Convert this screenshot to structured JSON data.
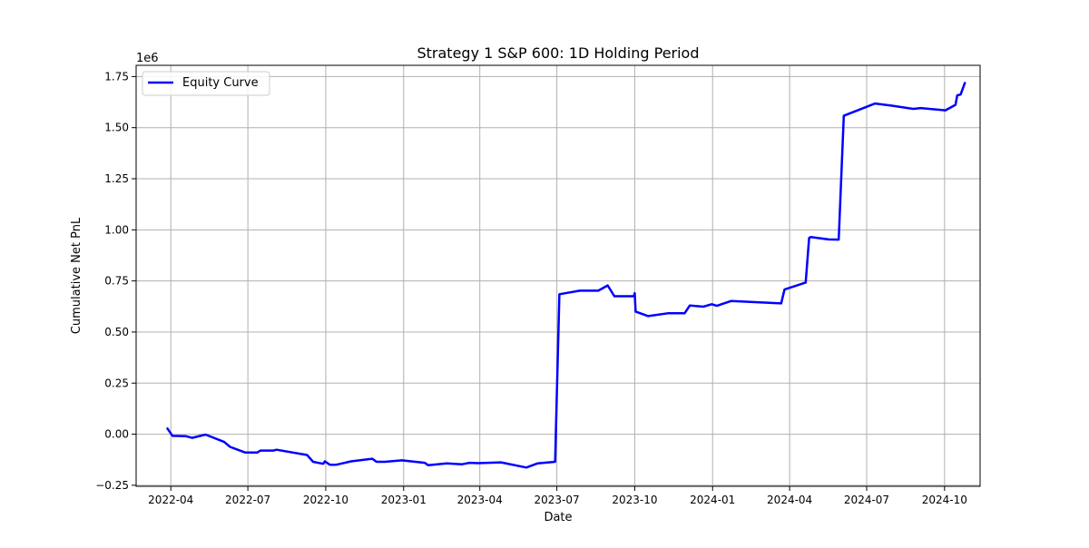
{
  "chart_data": {
    "type": "line",
    "title": "Strategy 1 S&P 600: 1D Holding Period",
    "xlabel": "Date",
    "ylabel": "Cumulative Net PnL",
    "y_multiplier_label": "1e6",
    "y_unit_multiplier": 1000000,
    "xlim": [
      "2022-02-19",
      "2024-11-12"
    ],
    "ylim": [
      -0.255,
      1.805
    ],
    "x_ticks": [
      "2022-04",
      "2022-07",
      "2022-10",
      "2023-01",
      "2023-04",
      "2023-07",
      "2023-10",
      "2024-01",
      "2024-04",
      "2024-07",
      "2024-10"
    ],
    "y_ticks": [
      -0.25,
      0.0,
      0.25,
      0.5,
      0.75,
      1.0,
      1.25,
      1.5,
      1.75
    ],
    "y_tick_labels": [
      "−0.25",
      "0.00",
      "0.25",
      "0.50",
      "0.75",
      "1.00",
      "1.25",
      "1.50",
      "1.75"
    ],
    "grid": true,
    "legend_position": "top-left",
    "line_color": "#0000ff",
    "series": [
      {
        "name": "Equity Curve",
        "points": [
          [
            "2022-03-28",
            0.028
          ],
          [
            "2022-04-03",
            -0.008
          ],
          [
            "2022-04-19",
            -0.01
          ],
          [
            "2022-04-26",
            -0.018
          ],
          [
            "2022-05-12",
            -0.002
          ],
          [
            "2022-06-03",
            -0.038
          ],
          [
            "2022-06-10",
            -0.062
          ],
          [
            "2022-06-28",
            -0.09
          ],
          [
            "2022-07-12",
            -0.09
          ],
          [
            "2022-07-16",
            -0.08
          ],
          [
            "2022-07-31",
            -0.08
          ],
          [
            "2022-08-04",
            -0.076
          ],
          [
            "2022-09-09",
            -0.102
          ],
          [
            "2022-09-16",
            -0.135
          ],
          [
            "2022-09-28",
            -0.145
          ],
          [
            "2022-09-30",
            -0.133
          ],
          [
            "2022-10-06",
            -0.15
          ],
          [
            "2022-10-13",
            -0.15
          ],
          [
            "2022-10-31",
            -0.133
          ],
          [
            "2022-11-25",
            -0.12
          ],
          [
            "2022-11-30",
            -0.135
          ],
          [
            "2022-12-10",
            -0.135
          ],
          [
            "2022-12-30",
            -0.128
          ],
          [
            "2023-01-26",
            -0.14
          ],
          [
            "2023-01-30",
            -0.152
          ],
          [
            "2023-02-21",
            -0.143
          ],
          [
            "2023-03-11",
            -0.147
          ],
          [
            "2023-03-20",
            -0.14
          ],
          [
            "2023-03-30",
            -0.142
          ],
          [
            "2023-04-26",
            -0.138
          ],
          [
            "2023-05-26",
            -0.163
          ],
          [
            "2023-06-08",
            -0.143
          ],
          [
            "2023-06-29",
            -0.135
          ],
          [
            "2023-07-04",
            0.685
          ],
          [
            "2023-07-28",
            0.702
          ],
          [
            "2023-08-19",
            0.702
          ],
          [
            "2023-08-30",
            0.728
          ],
          [
            "2023-09-07",
            0.675
          ],
          [
            "2023-09-30",
            0.675
          ],
          [
            "2023-10-01",
            0.69
          ],
          [
            "2023-10-02",
            0.6
          ],
          [
            "2023-10-17",
            0.578
          ],
          [
            "2023-11-10",
            0.592
          ],
          [
            "2023-11-29",
            0.592
          ],
          [
            "2023-12-05",
            0.63
          ],
          [
            "2023-12-21",
            0.624
          ],
          [
            "2023-12-31",
            0.636
          ],
          [
            "2024-01-06",
            0.628
          ],
          [
            "2024-01-23",
            0.652
          ],
          [
            "2024-03-22",
            0.64
          ],
          [
            "2024-03-26",
            0.708
          ],
          [
            "2024-04-20",
            0.742
          ],
          [
            "2024-04-24",
            0.96
          ],
          [
            "2024-04-26",
            0.965
          ],
          [
            "2024-05-17",
            0.953
          ],
          [
            "2024-05-29",
            0.952
          ],
          [
            "2024-06-04",
            1.558
          ],
          [
            "2024-07-11",
            1.618
          ],
          [
            "2024-07-30",
            1.608
          ],
          [
            "2024-08-25",
            1.592
          ],
          [
            "2024-09-03",
            1.596
          ],
          [
            "2024-10-02",
            1.585
          ],
          [
            "2024-10-14",
            1.612
          ],
          [
            "2024-10-16",
            1.658
          ],
          [
            "2024-10-20",
            1.662
          ],
          [
            "2024-10-25",
            1.719
          ]
        ]
      }
    ]
  }
}
